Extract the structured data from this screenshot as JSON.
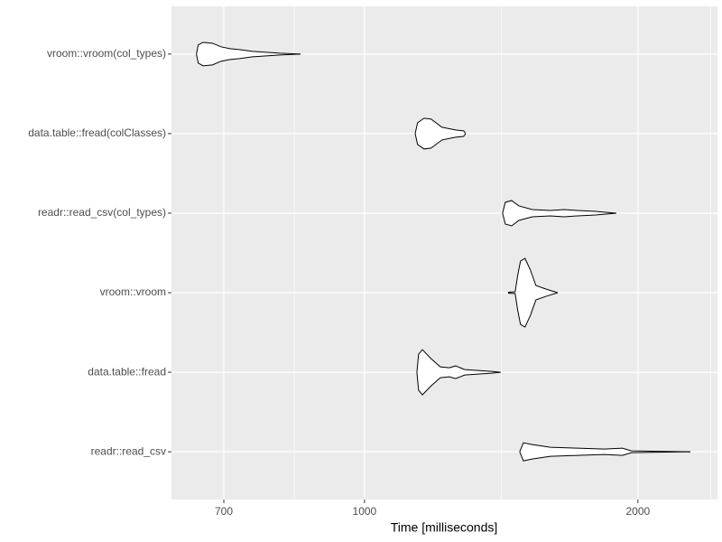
{
  "chart_data": {
    "type": "violin",
    "xlabel": "Time [milliseconds]",
    "log_x": true,
    "xlim": [
      613,
      2447
    ],
    "xticks": [
      700,
      1000,
      2000
    ],
    "xminor": [
      837,
      1414,
      2405
    ],
    "grid": true,
    "fill": "#ffffff",
    "stroke": "#000000",
    "background": "#ebebeb",
    "categories": [
      "vroom::vroom(col_types)",
      "data.table::fread(colClasses)",
      "readr::read_csv(col_types)",
      "vroom::vroom",
      "data.table::fread",
      "readr::read_csv"
    ],
    "violins": [
      {
        "time": [
          653,
          656,
          664,
          680,
          695,
          711,
          728,
          753,
          780,
          807,
          850
        ],
        "density": [
          0,
          10,
          13,
          12,
          8,
          6,
          5,
          3,
          2,
          1,
          0
        ]
      },
      {
        "time": [
          1137,
          1144,
          1163,
          1184,
          1217,
          1260,
          1286,
          1292
        ],
        "density": [
          0,
          12,
          17,
          16,
          7,
          4,
          3,
          0
        ]
      },
      {
        "time": [
          1419,
          1429,
          1452,
          1479,
          1530,
          1602,
          1658,
          1716,
          1796,
          1893
        ],
        "density": [
          0,
          12,
          14,
          8,
          4,
          3,
          4,
          3,
          2,
          0
        ]
      },
      {
        "time": [
          1439,
          1465,
          1475,
          1485,
          1502,
          1523,
          1544,
          1584,
          1632
        ],
        "density": [
          0.5,
          1,
          20,
          35,
          38,
          25,
          8,
          4,
          0
        ]
      },
      {
        "time": [
          1142,
          1147,
          1158,
          1184,
          1212,
          1240,
          1260,
          1289,
          1334,
          1380,
          1412
        ],
        "density": [
          0,
          20,
          25,
          15,
          6,
          5,
          7,
          3,
          2,
          1,
          0
        ]
      },
      {
        "time": [
          1482,
          1496,
          1530,
          1602,
          1716,
          1837,
          1923,
          1967,
          2108,
          2284
        ],
        "density": [
          0,
          10,
          8,
          5,
          4,
          3,
          4,
          1,
          0.5,
          0
        ]
      }
    ]
  }
}
